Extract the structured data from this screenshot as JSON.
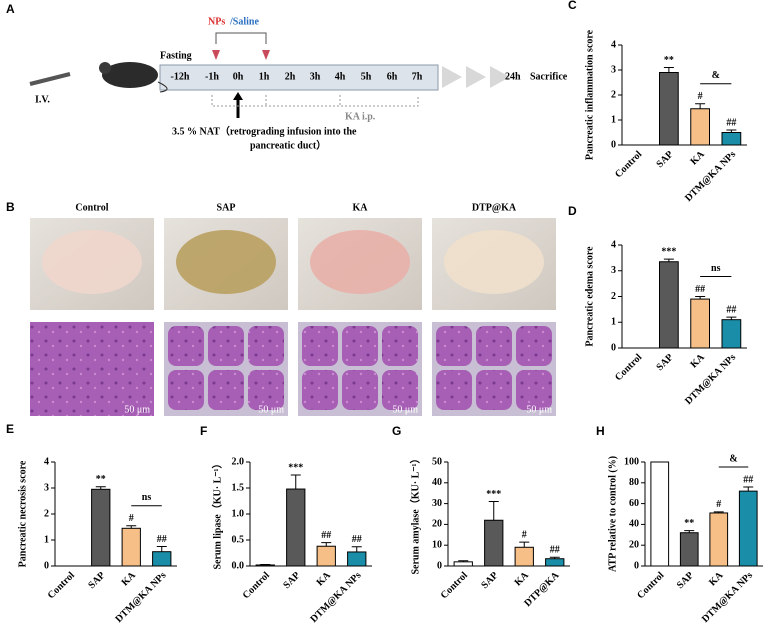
{
  "panel_a": {
    "letter": "A",
    "nps": "NPs",
    "saline": "/Saline",
    "fasting": "Fasting",
    "iv": "I.V.",
    "timeline": [
      "-12h",
      "-1h",
      "0h",
      "1h",
      "2h",
      "3h",
      "4h",
      "5h",
      "6h",
      "7h"
    ],
    "end_time": "24h",
    "end_label": "Sacrifice",
    "ka": "KA i.p.",
    "nat_line1": "3.5 % NAT（retrograding infusion into the",
    "nat_line2": "pancreatic duct）"
  },
  "panel_b": {
    "letter": "B",
    "groups": [
      "Control",
      "SAP",
      "KA",
      "DTP@KA"
    ],
    "scale": "50 μm"
  },
  "chart_data": [
    {
      "type": "bar",
      "panel": "C",
      "y_label": "Pancreatic inflammation score",
      "categories": [
        "Control",
        "SAP",
        "KA",
        "DTM@KA NPs"
      ],
      "values": [
        0,
        2.9,
        1.45,
        0.5
      ],
      "errors": [
        0,
        0.2,
        0.2,
        0.1
      ],
      "colors": [
        "#ffffff",
        "#595959",
        "#f5bf87",
        "#1a8ea8"
      ],
      "annotations": [
        null,
        "**",
        "#",
        "##"
      ],
      "comparison": {
        "label": "&",
        "between": [
          "KA",
          "DTM@KA NPs"
        ]
      },
      "ylim": [
        0,
        4
      ],
      "yticks": [
        0,
        1,
        2,
        3,
        4
      ]
    },
    {
      "type": "bar",
      "panel": "D",
      "y_label": "Pancreatic edema score",
      "categories": [
        "Control",
        "SAP",
        "KA",
        "DTM@KA NPs"
      ],
      "values": [
        0,
        3.35,
        1.9,
        1.1
      ],
      "errors": [
        0,
        0.1,
        0.1,
        0.1
      ],
      "colors": [
        "#ffffff",
        "#595959",
        "#f5bf87",
        "#1a8ea8"
      ],
      "annotations": [
        null,
        "***",
        "##",
        "##"
      ],
      "comparison": {
        "label": "ns",
        "between": [
          "KA",
          "DTM@KA NPs"
        ]
      },
      "ylim": [
        0,
        4
      ],
      "yticks": [
        0,
        1,
        2,
        3,
        4
      ]
    },
    {
      "type": "bar",
      "panel": "E",
      "y_label": "Pancreatic necrosis score",
      "categories": [
        "Control",
        "SAP",
        "KA",
        "DTM@KA NPs"
      ],
      "values": [
        0,
        2.95,
        1.45,
        0.55
      ],
      "errors": [
        0,
        0.1,
        0.1,
        0.2
      ],
      "colors": [
        "#ffffff",
        "#595959",
        "#f5bf87",
        "#1a8ea8"
      ],
      "annotations": [
        null,
        "**",
        "#",
        "##"
      ],
      "comparison": {
        "label": "ns",
        "between": [
          "KA",
          "DTM@KA NPs"
        ]
      },
      "ylim": [
        0,
        4
      ],
      "yticks": [
        0,
        1,
        2,
        3,
        4
      ]
    },
    {
      "type": "bar",
      "panel": "F",
      "y_label": "Serum lipase（KU· L⁻¹）",
      "categories": [
        "Control",
        "SAP",
        "KA",
        "DTM@KA NPs"
      ],
      "values": [
        0.02,
        1.48,
        0.38,
        0.27
      ],
      "errors": [
        0.01,
        0.27,
        0.07,
        0.1
      ],
      "colors": [
        "#ffffff",
        "#595959",
        "#f5bf87",
        "#1a8ea8"
      ],
      "annotations": [
        null,
        "***",
        "##",
        "##"
      ],
      "ylim": [
        0,
        2
      ],
      "yticks": [
        {
          "value": 0,
          "label": "0.0"
        },
        0.5,
        {
          "value": 1,
          "label": "1.0"
        },
        1.5,
        {
          "value": 2,
          "label": "2.0"
        }
      ]
    },
    {
      "type": "bar",
      "panel": "G",
      "y_label": "Serum amylase（KU· L⁻¹）",
      "categories": [
        "Control",
        "SAP",
        "KA",
        "DTP@KA"
      ],
      "values": [
        2,
        22,
        9,
        3.5
      ],
      "errors": [
        0.5,
        9,
        2.5,
        0.7
      ],
      "colors": [
        "#ffffff",
        "#595959",
        "#f5bf87",
        "#1a8ea8"
      ],
      "annotations": [
        null,
        "***",
        "#",
        "##"
      ],
      "ylim": [
        0,
        50
      ],
      "yticks": [
        0,
        10,
        20,
        30,
        40,
        50
      ]
    },
    {
      "type": "bar",
      "panel": "H",
      "y_label": "ATP relative to control (%)",
      "categories": [
        "Control",
        "SAP",
        "KA",
        "DTM@KA NPs"
      ],
      "values": [
        100,
        32,
        51,
        72
      ],
      "errors": [
        0,
        2,
        1,
        4
      ],
      "colors": [
        "#ffffff",
        "#595959",
        "#f5bf87",
        "#1a8ea8"
      ],
      "annotations": [
        null,
        "**",
        "#",
        "##"
      ],
      "comparison": {
        "label": "&",
        "between": [
          "KA",
          "DTM@KA NPs"
        ]
      },
      "ylim": [
        0,
        100
      ],
      "yticks": [
        0,
        20,
        40,
        60,
        80,
        100
      ]
    }
  ]
}
